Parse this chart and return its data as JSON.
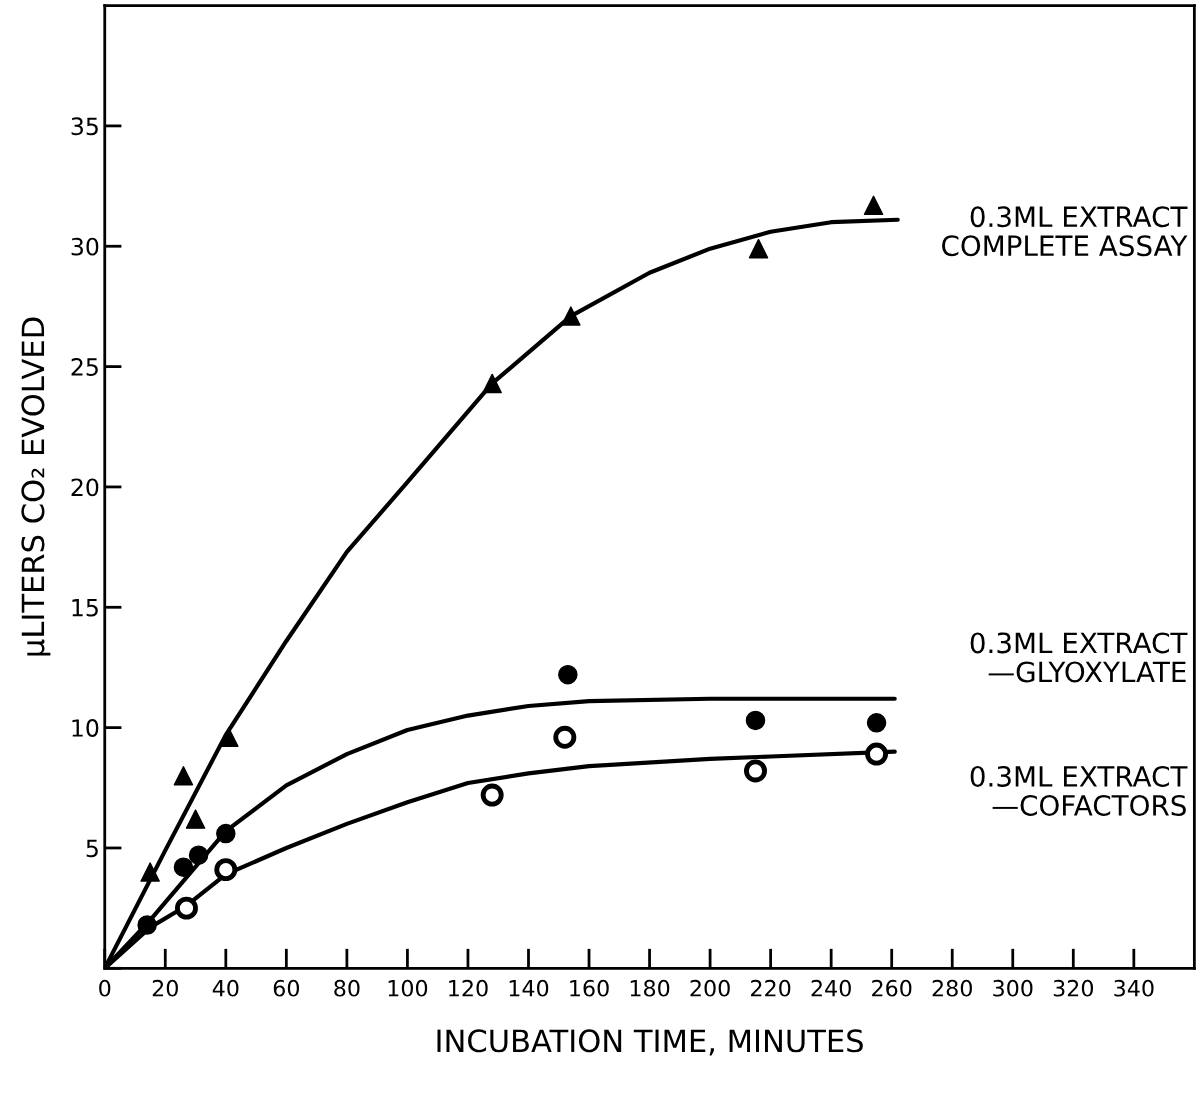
{
  "chart_data": {
    "type": "scatter",
    "xlabel": "INCUBATION TIME, MINUTES",
    "ylabel": "μLITERS CO₂ EVOLVED",
    "xlim": [
      0,
      360
    ],
    "ylim": [
      0,
      40
    ],
    "xticks": [
      0,
      20,
      40,
      60,
      80,
      100,
      120,
      140,
      160,
      180,
      200,
      220,
      240,
      260,
      280,
      300,
      320,
      340
    ],
    "yticks": [
      {
        "value": 0,
        "label": null
      },
      5,
      10,
      15,
      20,
      25,
      30,
      35
    ],
    "grid": false,
    "legend": false,
    "series": [
      {
        "type": "line",
        "name": "0.3ML EXTRACT\nCOMPLETE ASSAY",
        "color": "#000000",
        "marker": "none",
        "x": [
          0,
          20,
          40,
          60,
          80,
          100,
          128,
          154,
          180,
          200,
          220,
          240,
          262
        ],
        "values": [
          0,
          4.9,
          9.7,
          13.6,
          17.3,
          20.2,
          24.3,
          27.1,
          28.9,
          29.9,
          30.6,
          31.0,
          31.1
        ]
      },
      {
        "type": "line",
        "name": "0.3ML EXTRACT\n—GLYOXYLATE",
        "color": "#000000",
        "marker": "none",
        "x": [
          0,
          15,
          40,
          60,
          80,
          100,
          120,
          140,
          160,
          200,
          261
        ],
        "values": [
          0,
          2.0,
          5.7,
          7.6,
          8.9,
          9.9,
          10.5,
          10.9,
          11.1,
          11.2,
          11.2
        ]
      },
      {
        "type": "line",
        "name": "0.3ML EXTRACT\n—COFACTORS",
        "color": "#000000",
        "marker": "none",
        "x": [
          0,
          15,
          27,
          40,
          60,
          80,
          100,
          120,
          140,
          160,
          200,
          220,
          261
        ],
        "values": [
          0,
          1.7,
          2.6,
          3.9,
          5.0,
          6.0,
          6.9,
          7.7,
          8.1,
          8.4,
          8.7,
          8.8,
          9.0
        ]
      },
      {
        "color": "#000000",
        "marker": "triangle",
        "x": [
          15,
          26,
          30,
          41,
          128,
          154,
          216,
          254
        ],
        "values": [
          4.0,
          8.0,
          6.2,
          9.6,
          24.3,
          27.1,
          29.9,
          31.7
        ]
      },
      {
        "color": "#000000",
        "marker": "circle",
        "x": [
          14,
          26,
          31,
          40,
          153,
          215,
          255
        ],
        "values": [
          1.8,
          4.2,
          4.7,
          5.6,
          12.2,
          10.3,
          10.2
        ]
      },
      {
        "color": "#000000",
        "marker": "circle",
        "x": [
          27,
          40,
          128,
          152,
          215,
          255
        ],
        "values": [
          2.5,
          4.1,
          7.2,
          9.6,
          8.2,
          8.9
        ]
      }
    ]
  }
}
